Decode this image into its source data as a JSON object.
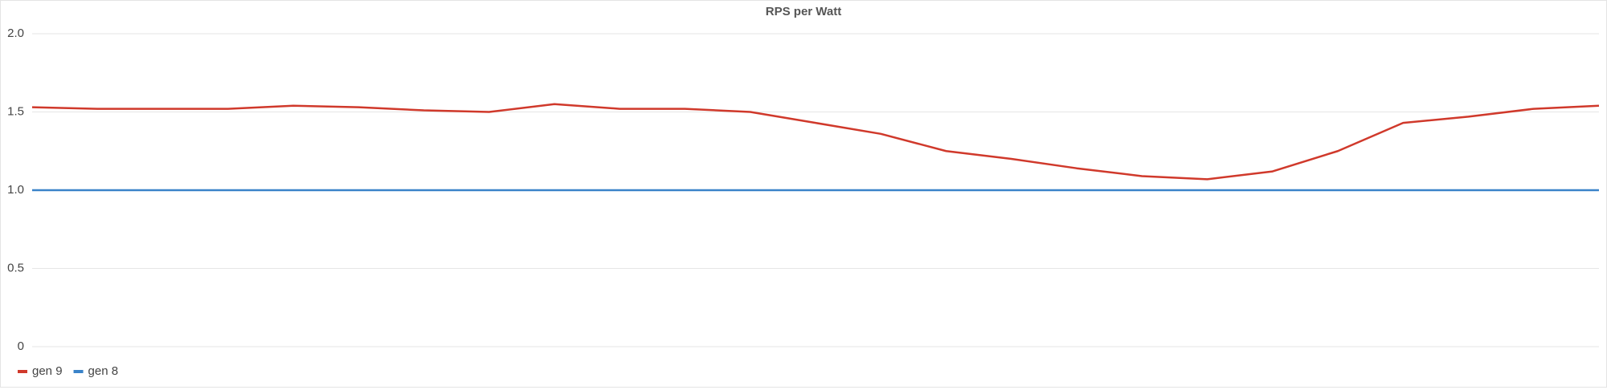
{
  "chart_data": {
    "type": "line",
    "title": "RPS per Watt",
    "categories": [
      null,
      null,
      null,
      null,
      null,
      null,
      null,
      null,
      null,
      null,
      null,
      null,
      null,
      null,
      null,
      null,
      null,
      null,
      null,
      null,
      null,
      null,
      null,
      null,
      null
    ],
    "series": [
      {
        "name": "gen 9",
        "color": "#d0392b",
        "values": [
          1.53,
          1.52,
          1.52,
          1.52,
          1.54,
          1.53,
          1.51,
          1.5,
          1.55,
          1.52,
          1.52,
          1.5,
          1.43,
          1.36,
          1.25,
          1.2,
          1.14,
          1.09,
          1.07,
          1.12,
          1.25,
          1.43,
          1.47,
          1.52,
          1.54
        ]
      },
      {
        "name": "gen 8",
        "color": "#3a83c9",
        "values": [
          1,
          1,
          1,
          1,
          1,
          1,
          1,
          1,
          1,
          1,
          1,
          1,
          1,
          1,
          1,
          1,
          1,
          1,
          1,
          1,
          1,
          1,
          1,
          1,
          1
        ]
      }
    ],
    "ylim": [
      0,
      2
    ],
    "yticks": [
      0,
      0.5,
      {
        "value": 1,
        "label": "1.0"
      },
      1.5,
      {
        "value": 2,
        "label": "2.0"
      }
    ],
    "grid": true
  }
}
